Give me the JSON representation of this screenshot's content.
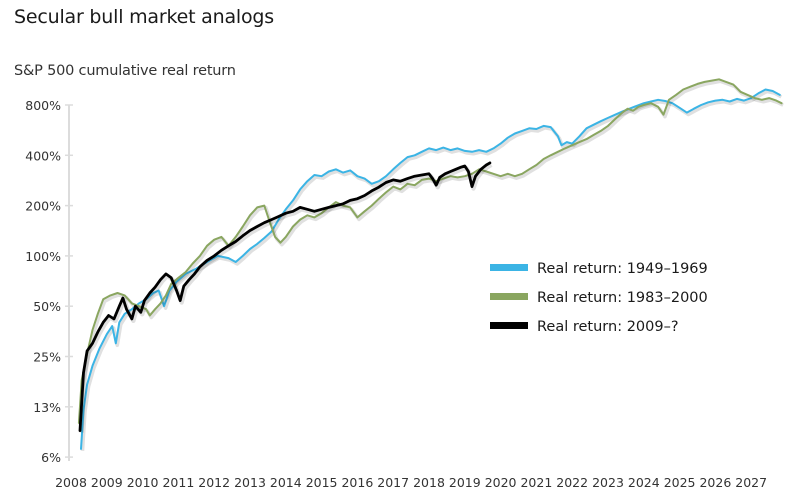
{
  "title": "Secular bull market analogs",
  "subtitle": "S&P 500 cumulative real return",
  "chart_data": {
    "type": "line",
    "title": "Secular bull market analogs",
    "ylabel": "S&P 500 cumulative real return",
    "xlabel": "",
    "yscale": "log2",
    "ylim": [
      6,
      800
    ],
    "xlim": [
      2008,
      2028
    ],
    "y_ticks": [
      800,
      400,
      200,
      100,
      50,
      25,
      13,
      6
    ],
    "y_tick_labels": [
      "800%",
      "400%",
      "200%",
      "100%",
      "50%",
      "25%",
      "13%",
      "6%"
    ],
    "x_ticks": [
      2008,
      2009,
      2010,
      2011,
      2012,
      2013,
      2014,
      2015,
      2016,
      2017,
      2018,
      2019,
      2020,
      2021,
      2022,
      2023,
      2024,
      2025,
      2026,
      2027
    ],
    "x_tick_labels": [
      "2008",
      "2009",
      "2010",
      "2011",
      "2012",
      "2013",
      "2014",
      "2015",
      "2016",
      "2017",
      "2018",
      "2019",
      "2020",
      "2021",
      "2022",
      "2023",
      "2024",
      "2025",
      "2026",
      "2027"
    ],
    "grid": false,
    "legend_position": "center-right",
    "series": [
      {
        "name": "Real return: 1949–1969",
        "color": "#3bb4e5",
        "points": [
          [
            2008.28,
            7
          ],
          [
            2008.35,
            12
          ],
          [
            2008.45,
            17
          ],
          [
            2008.6,
            22
          ],
          [
            2008.8,
            28
          ],
          [
            2009.0,
            34
          ],
          [
            2009.15,
            38
          ],
          [
            2009.25,
            30
          ],
          [
            2009.35,
            40
          ],
          [
            2009.5,
            45
          ],
          [
            2009.7,
            48
          ],
          [
            2009.9,
            52
          ],
          [
            2010.1,
            55
          ],
          [
            2010.3,
            60
          ],
          [
            2010.45,
            62
          ],
          [
            2010.6,
            50
          ],
          [
            2010.75,
            62
          ],
          [
            2010.95,
            70
          ],
          [
            2011.2,
            78
          ],
          [
            2011.5,
            84
          ],
          [
            2011.8,
            92
          ],
          [
            2012.1,
            100
          ],
          [
            2012.4,
            97
          ],
          [
            2012.6,
            92
          ],
          [
            2012.8,
            100
          ],
          [
            2013.0,
            110
          ],
          [
            2013.2,
            118
          ],
          [
            2013.4,
            128
          ],
          [
            2013.6,
            140
          ],
          [
            2013.8,
            165
          ],
          [
            2014.0,
            190
          ],
          [
            2014.2,
            215
          ],
          [
            2014.4,
            250
          ],
          [
            2014.6,
            280
          ],
          [
            2014.8,
            305
          ],
          [
            2015.0,
            300
          ],
          [
            2015.2,
            320
          ],
          [
            2015.4,
            330
          ],
          [
            2015.6,
            315
          ],
          [
            2015.8,
            325
          ],
          [
            2016.0,
            300
          ],
          [
            2016.2,
            290
          ],
          [
            2016.4,
            270
          ],
          [
            2016.6,
            280
          ],
          [
            2016.8,
            300
          ],
          [
            2017.0,
            330
          ],
          [
            2017.2,
            360
          ],
          [
            2017.4,
            390
          ],
          [
            2017.6,
            400
          ],
          [
            2017.8,
            420
          ],
          [
            2018.0,
            440
          ],
          [
            2018.2,
            430
          ],
          [
            2018.4,
            445
          ],
          [
            2018.6,
            430
          ],
          [
            2018.8,
            440
          ],
          [
            2019.0,
            425
          ],
          [
            2019.2,
            420
          ],
          [
            2019.4,
            430
          ],
          [
            2019.6,
            420
          ],
          [
            2019.8,
            440
          ],
          [
            2020.0,
            470
          ],
          [
            2020.2,
            510
          ],
          [
            2020.4,
            540
          ],
          [
            2020.6,
            560
          ],
          [
            2020.8,
            580
          ],
          [
            2021.0,
            575
          ],
          [
            2021.2,
            600
          ],
          [
            2021.4,
            590
          ],
          [
            2021.6,
            520
          ],
          [
            2021.7,
            460
          ],
          [
            2021.85,
            480
          ],
          [
            2022.0,
            470
          ],
          [
            2022.2,
            520
          ],
          [
            2022.4,
            580
          ],
          [
            2022.6,
            610
          ],
          [
            2022.8,
            640
          ],
          [
            2023.0,
            670
          ],
          [
            2023.2,
            700
          ],
          [
            2023.4,
            730
          ],
          [
            2023.6,
            760
          ],
          [
            2023.8,
            790
          ],
          [
            2024.0,
            820
          ],
          [
            2024.2,
            840
          ],
          [
            2024.4,
            860
          ],
          [
            2024.6,
            845
          ],
          [
            2024.8,
            820
          ],
          [
            2025.0,
            770
          ],
          [
            2025.2,
            720
          ],
          [
            2025.4,
            760
          ],
          [
            2025.6,
            800
          ],
          [
            2025.8,
            830
          ],
          [
            2026.0,
            850
          ],
          [
            2026.2,
            860
          ],
          [
            2026.4,
            840
          ],
          [
            2026.6,
            870
          ],
          [
            2026.8,
            850
          ],
          [
            2027.0,
            880
          ],
          [
            2027.2,
            940
          ],
          [
            2027.4,
            990
          ],
          [
            2027.6,
            970
          ],
          [
            2027.8,
            920
          ]
        ]
      },
      {
        "name": "Real return: 1983–2000",
        "color": "#8aa660",
        "points": [
          [
            2008.22,
            10
          ],
          [
            2008.3,
            18
          ],
          [
            2008.45,
            26
          ],
          [
            2008.6,
            36
          ],
          [
            2008.75,
            45
          ],
          [
            2008.9,
            55
          ],
          [
            2009.1,
            58
          ],
          [
            2009.3,
            60
          ],
          [
            2009.5,
            58
          ],
          [
            2009.7,
            52
          ],
          [
            2009.9,
            50
          ],
          [
            2010.1,
            48
          ],
          [
            2010.2,
            44
          ],
          [
            2010.35,
            48
          ],
          [
            2010.5,
            52
          ],
          [
            2010.65,
            58
          ],
          [
            2010.8,
            68
          ],
          [
            2011.0,
            74
          ],
          [
            2011.2,
            80
          ],
          [
            2011.4,
            90
          ],
          [
            2011.6,
            100
          ],
          [
            2011.8,
            115
          ],
          [
            2012.0,
            125
          ],
          [
            2012.2,
            130
          ],
          [
            2012.4,
            115
          ],
          [
            2012.6,
            130
          ],
          [
            2012.8,
            150
          ],
          [
            2013.0,
            175
          ],
          [
            2013.2,
            195
          ],
          [
            2013.4,
            200
          ],
          [
            2013.55,
            160
          ],
          [
            2013.7,
            130
          ],
          [
            2013.85,
            120
          ],
          [
            2014.0,
            130
          ],
          [
            2014.2,
            150
          ],
          [
            2014.4,
            165
          ],
          [
            2014.6,
            175
          ],
          [
            2014.8,
            170
          ],
          [
            2015.0,
            180
          ],
          [
            2015.2,
            195
          ],
          [
            2015.4,
            210
          ],
          [
            2015.6,
            200
          ],
          [
            2015.8,
            195
          ],
          [
            2016.0,
            170
          ],
          [
            2016.2,
            185
          ],
          [
            2016.4,
            200
          ],
          [
            2016.6,
            220
          ],
          [
            2016.8,
            240
          ],
          [
            2017.0,
            260
          ],
          [
            2017.2,
            250
          ],
          [
            2017.4,
            270
          ],
          [
            2017.6,
            265
          ],
          [
            2017.8,
            285
          ],
          [
            2018.0,
            290
          ],
          [
            2018.2,
            280
          ],
          [
            2018.4,
            290
          ],
          [
            2018.6,
            300
          ],
          [
            2018.8,
            295
          ],
          [
            2019.0,
            300
          ],
          [
            2019.2,
            310
          ],
          [
            2019.4,
            330
          ],
          [
            2019.6,
            320
          ],
          [
            2019.8,
            310
          ],
          [
            2020.0,
            300
          ],
          [
            2020.2,
            310
          ],
          [
            2020.4,
            300
          ],
          [
            2020.6,
            310
          ],
          [
            2020.8,
            330
          ],
          [
            2021.0,
            350
          ],
          [
            2021.2,
            380
          ],
          [
            2021.4,
            400
          ],
          [
            2021.6,
            420
          ],
          [
            2021.8,
            440
          ],
          [
            2022.0,
            460
          ],
          [
            2022.2,
            480
          ],
          [
            2022.4,
            500
          ],
          [
            2022.6,
            530
          ],
          [
            2022.8,
            560
          ],
          [
            2023.0,
            600
          ],
          [
            2023.2,
            660
          ],
          [
            2023.4,
            720
          ],
          [
            2023.55,
            760
          ],
          [
            2023.7,
            740
          ],
          [
            2023.85,
            780
          ],
          [
            2024.0,
            800
          ],
          [
            2024.2,
            820
          ],
          [
            2024.4,
            780
          ],
          [
            2024.55,
            700
          ],
          [
            2024.7,
            860
          ],
          [
            2024.9,
            920
          ],
          [
            2025.1,
            990
          ],
          [
            2025.3,
            1030
          ],
          [
            2025.5,
            1070
          ],
          [
            2025.7,
            1100
          ],
          [
            2025.9,
            1120
          ],
          [
            2026.1,
            1140
          ],
          [
            2026.3,
            1100
          ],
          [
            2026.5,
            1060
          ],
          [
            2026.7,
            960
          ],
          [
            2026.9,
            920
          ],
          [
            2027.1,
            880
          ],
          [
            2027.3,
            860
          ],
          [
            2027.5,
            880
          ],
          [
            2027.7,
            850
          ],
          [
            2027.85,
            820
          ]
        ]
      },
      {
        "name": "Real return: 2009–?",
        "color": "#000000",
        "points": [
          [
            2008.25,
            9
          ],
          [
            2008.35,
            20
          ],
          [
            2008.45,
            27
          ],
          [
            2008.6,
            30
          ],
          [
            2008.75,
            35
          ],
          [
            2008.9,
            40
          ],
          [
            2009.05,
            44
          ],
          [
            2009.2,
            42
          ],
          [
            2009.35,
            50
          ],
          [
            2009.45,
            56
          ],
          [
            2009.55,
            48
          ],
          [
            2009.7,
            42
          ],
          [
            2009.8,
            50
          ],
          [
            2009.95,
            46
          ],
          [
            2010.05,
            54
          ],
          [
            2010.2,
            60
          ],
          [
            2010.35,
            65
          ],
          [
            2010.5,
            72
          ],
          [
            2010.65,
            78
          ],
          [
            2010.8,
            74
          ],
          [
            2010.95,
            62
          ],
          [
            2011.05,
            54
          ],
          [
            2011.15,
            66
          ],
          [
            2011.3,
            72
          ],
          [
            2011.45,
            78
          ],
          [
            2011.6,
            86
          ],
          [
            2011.8,
            94
          ],
          [
            2012.0,
            100
          ],
          [
            2012.2,
            108
          ],
          [
            2012.4,
            115
          ],
          [
            2012.6,
            122
          ],
          [
            2012.8,
            132
          ],
          [
            2013.0,
            142
          ],
          [
            2013.2,
            150
          ],
          [
            2013.4,
            158
          ],
          [
            2013.6,
            165
          ],
          [
            2013.8,
            172
          ],
          [
            2014.0,
            180
          ],
          [
            2014.2,
            185
          ],
          [
            2014.4,
            195
          ],
          [
            2014.6,
            190
          ],
          [
            2014.8,
            185
          ],
          [
            2015.0,
            190
          ],
          [
            2015.2,
            195
          ],
          [
            2015.4,
            200
          ],
          [
            2015.6,
            205
          ],
          [
            2015.8,
            215
          ],
          [
            2016.0,
            220
          ],
          [
            2016.2,
            230
          ],
          [
            2016.4,
            245
          ],
          [
            2016.6,
            258
          ],
          [
            2016.8,
            275
          ],
          [
            2017.0,
            285
          ],
          [
            2017.2,
            280
          ],
          [
            2017.4,
            290
          ],
          [
            2017.6,
            300
          ],
          [
            2017.8,
            305
          ],
          [
            2018.0,
            310
          ],
          [
            2018.1,
            290
          ],
          [
            2018.2,
            265
          ],
          [
            2018.3,
            295
          ],
          [
            2018.45,
            310
          ],
          [
            2018.6,
            320
          ],
          [
            2018.75,
            330
          ],
          [
            2018.9,
            340
          ],
          [
            2019.0,
            345
          ],
          [
            2019.1,
            320
          ],
          [
            2019.2,
            260
          ],
          [
            2019.3,
            300
          ],
          [
            2019.45,
            330
          ],
          [
            2019.6,
            350
          ],
          [
            2019.7,
            360
          ]
        ]
      }
    ]
  }
}
